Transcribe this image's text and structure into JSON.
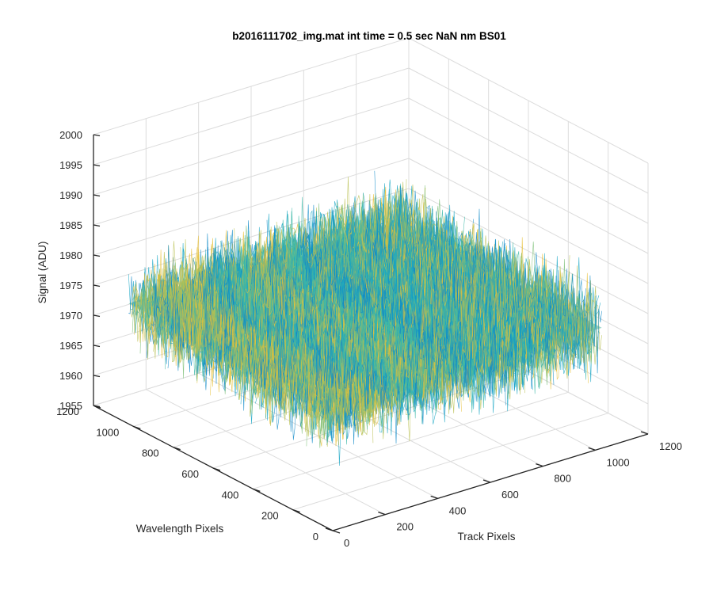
{
  "chart_data": {
    "type": "surface",
    "title": "b2016111702_img.mat int time = 0.5 sec  NaN nm BS01",
    "xlabel": "Track Pixels",
    "ylabel": "Wavelength Pixels",
    "zlabel": "Signal (ADU)",
    "xlim": [
      0,
      1200
    ],
    "ylim": [
      0,
      1200
    ],
    "zlim": [
      1955,
      2000
    ],
    "x_ticks": [
      "0",
      "200",
      "400",
      "600",
      "800",
      "1000",
      "1200"
    ],
    "y_ticks": [
      "0",
      "200",
      "400",
      "600",
      "800",
      "1000",
      "1200"
    ],
    "z_ticks": [
      "1955",
      "1960",
      "1965",
      "1970",
      "1975",
      "1980",
      "1985",
      "1990",
      "1995",
      "2000"
    ],
    "grid": true,
    "surface": {
      "x_range": [
        0,
        1024
      ],
      "y_range": [
        0,
        1024
      ],
      "z_mean": 1975,
      "z_typical_range": [
        1966,
        1984
      ],
      "colormap": "parula",
      "colors": [
        "#0f8ac8",
        "#18a6c4",
        "#3db8a8",
        "#7dbf78",
        "#b9bf50",
        "#e7c13a"
      ]
    }
  }
}
